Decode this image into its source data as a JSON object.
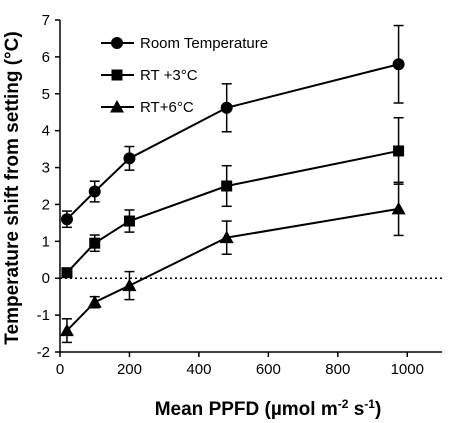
{
  "chart_data": {
    "type": "line",
    "title": "",
    "xlabel": "Mean PPFD (µmol m",
    "xlabel_sup1": "-2",
    "xlabel_mid": " s",
    "xlabel_sup2": "-1",
    "xlabel_end": ")",
    "ylabel": "Temperature shift from setting (°C)",
    "xlim": [
      0,
      1100
    ],
    "ylim": [
      -2,
      7
    ],
    "x_ticks": [
      "0",
      "200",
      "400",
      "600",
      "800",
      "1000"
    ],
    "y_ticks": [
      "-2",
      "-1",
      "0",
      "1",
      "2",
      "3",
      "4",
      "5",
      "6",
      "7"
    ],
    "x_tick_values": [
      0,
      200,
      400,
      600,
      800,
      1000
    ],
    "y_tick_values": [
      -2,
      -1,
      0,
      1,
      2,
      3,
      4,
      5,
      6,
      7
    ],
    "reference_line": 0,
    "legend_position": "top-left",
    "series": [
      {
        "name": "Room Temperature",
        "marker": "circle",
        "x": [
          20,
          100,
          200,
          480,
          975
        ],
        "y": [
          1.6,
          2.35,
          3.25,
          4.62,
          5.8
        ],
        "err": [
          0.22,
          0.28,
          0.32,
          0.65,
          1.05
        ]
      },
      {
        "name": "RT +3°C",
        "marker": "square",
        "x": [
          20,
          100,
          200,
          480,
          975
        ],
        "y": [
          0.15,
          0.95,
          1.55,
          2.5,
          3.45
        ],
        "err": [
          0.12,
          0.22,
          0.3,
          0.55,
          0.9
        ]
      },
      {
        "name": "RT+6°C",
        "marker": "triangle",
        "x": [
          20,
          100,
          200,
          480,
          975
        ],
        "y": [
          -1.42,
          -0.65,
          -0.2,
          1.1,
          1.88
        ],
        "err": [
          0.32,
          0.15,
          0.38,
          0.45,
          0.72
        ]
      }
    ]
  }
}
